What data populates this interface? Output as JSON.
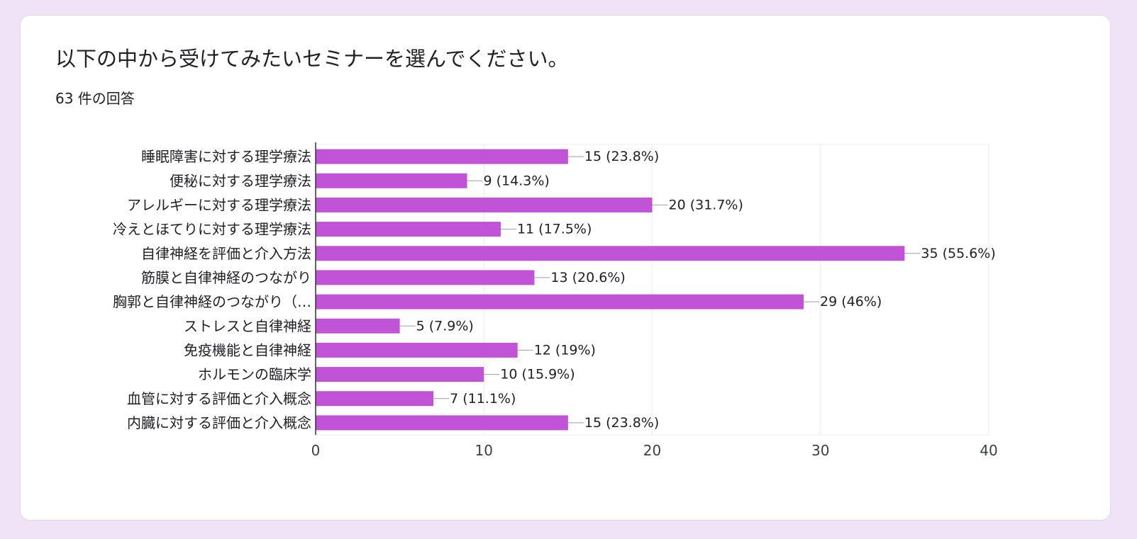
{
  "question": {
    "title": "以下の中から受けてみたいセミナーを選んでください。",
    "response_count": "63 件の回答"
  },
  "colors": {
    "bar": "#c153d6",
    "background": "#f1e3f7",
    "card": "#ffffff",
    "text": "#202124",
    "grid": "#ececec"
  },
  "chart_data": {
    "type": "bar",
    "orientation": "horizontal",
    "categories": [
      "睡眠障害に対する理学療法",
      "便秘に対する理学療法",
      "アレルギーに対する理学療法",
      "冷えとほてりに対する理学療法",
      "自律神経を評価と介入方法",
      "筋膜と自律神経のつながり",
      "胸郭と自律神経のつながり（…",
      "ストレスと自律神経",
      "免疫機能と自律神経",
      "ホルモンの臨床学",
      "血管に対する評価と介入概念",
      "内臓に対する評価と介入概念"
    ],
    "values": [
      15,
      9,
      20,
      11,
      35,
      13,
      29,
      5,
      12,
      10,
      7,
      15
    ],
    "data_labels": [
      "15 (23.8%)",
      "9 (14.3%)",
      "20 (31.7%)",
      "11 (17.5%)",
      "35 (55.6%)",
      "13 (20.6%)",
      "29 (46%)",
      "5 (7.9%)",
      "12 (19%)",
      "10 (15.9%)",
      "7 (11.1%)",
      "15 (23.8%)"
    ],
    "xlim": [
      0,
      40
    ],
    "x_ticks": [
      0,
      10,
      20,
      30,
      40
    ],
    "x_tick_labels": [
      "0",
      "10",
      "20",
      "30",
      "40"
    ],
    "grid": true,
    "legend": "none"
  }
}
